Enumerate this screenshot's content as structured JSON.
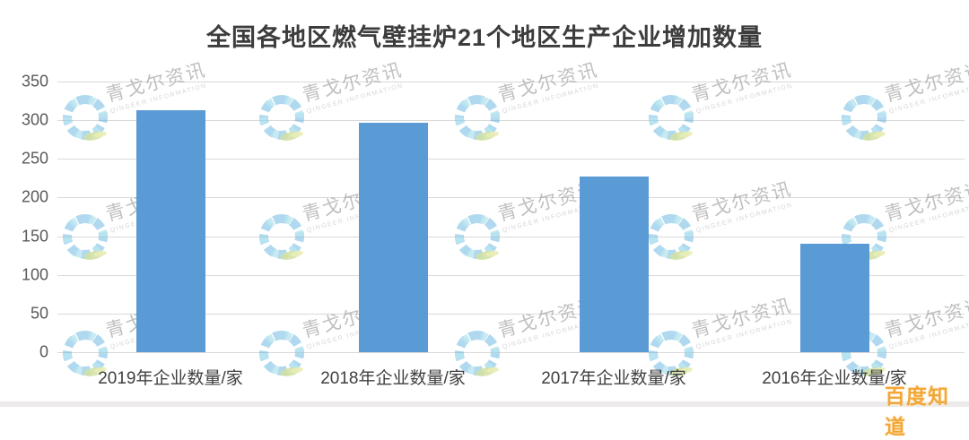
{
  "title": "全国各地区燃气壁挂炉21个地区生产企业增加数量",
  "chart_data": {
    "type": "bar",
    "title": "全国各地区燃气壁挂炉21个地区生产企业增加数量",
    "categories": [
      "2019年企业数量/家",
      "2018年企业数量/家",
      "2017年企业数量/家",
      "2016年企业数量/家"
    ],
    "values": [
      313,
      297,
      227,
      140
    ],
    "xlabel": "",
    "ylabel": "",
    "ylim": [
      0,
      350
    ],
    "yticks": [
      0,
      50,
      100,
      150,
      200,
      250,
      300,
      350
    ],
    "grid": true,
    "legend_position": "none",
    "bar_color": "#5B9BD5",
    "gridline_color": "#D9D9D9",
    "tick_label_color": "#595959"
  },
  "watermark": {
    "text": "青戈尔资讯",
    "subtext": "QINGEER INFORMATION",
    "logo": "segmented-ring-with-leaf-icon"
  },
  "badge": {
    "text": "百度知道",
    "color": "#F2A32E"
  }
}
